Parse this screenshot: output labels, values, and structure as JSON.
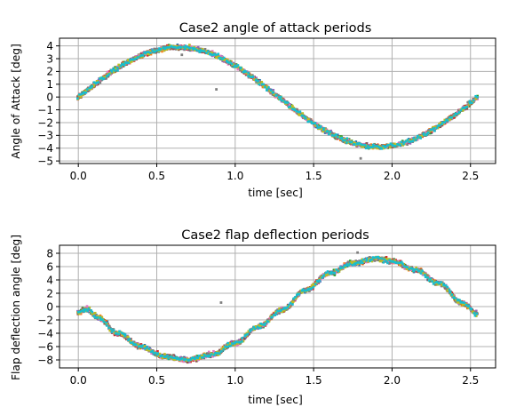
{
  "chart_data": [
    {
      "type": "scatter",
      "title": "Case2 angle of attack periods",
      "xlabel": "time [sec]",
      "ylabel": "Angle of Attack [deg]",
      "xlim": [
        -0.12,
        2.66
      ],
      "ylim": [
        -5.2,
        4.6
      ],
      "xticks": [
        0.0,
        0.5,
        1.0,
        1.5,
        2.0,
        2.5
      ],
      "xtick_labels": [
        "0.0",
        "0.5",
        "1.0",
        "1.5",
        "2.0",
        "2.5"
      ],
      "yticks": [
        4,
        3,
        2,
        1,
        0,
        -1,
        -2,
        -3,
        -4,
        -5
      ],
      "ytick_labels": [
        "4",
        "3",
        "2",
        "1",
        "0",
        "−1",
        "−2",
        "−3",
        "−4",
        "−5"
      ],
      "grid": true,
      "series_count": 10,
      "x_range_data": [
        0.0,
        2.54
      ],
      "trend": {
        "description": "noisy sinusoid, one full period",
        "amplitude": 3.9,
        "period": 2.55,
        "phase_zero_at": 0.0,
        "noise": 0.3
      },
      "outliers": [
        {
          "x": 0.88,
          "y": 0.6
        },
        {
          "x": 0.66,
          "y": 3.3
        },
        {
          "x": 1.8,
          "y": -4.8
        }
      ]
    },
    {
      "type": "scatter",
      "title": "Case2 flap deflection periods",
      "xlabel": "time [sec]",
      "ylabel": "Flap deflection angle [deg]",
      "xlim": [
        -0.12,
        2.66
      ],
      "ylim": [
        -9.2,
        9.2
      ],
      "xticks": [
        0.0,
        0.5,
        1.0,
        1.5,
        2.0,
        2.5
      ],
      "xtick_labels": [
        "0.0",
        "0.5",
        "1.0",
        "1.5",
        "2.0",
        "2.5"
      ],
      "yticks": [
        8,
        6,
        4,
        2,
        0,
        -2,
        -4,
        -6,
        -8
      ],
      "ytick_labels": [
        "8",
        "6",
        "4",
        "2",
        "0",
        "−2",
        "−4",
        "−6",
        "−8"
      ],
      "grid": true,
      "series_count": 10,
      "x_range_data": [
        0.0,
        2.54
      ],
      "trend": {
        "description": "noisy sinusoid lagging the angle of attack, with initial overshoot",
        "points": [
          [
            0.0,
            -1.0
          ],
          [
            0.05,
            -0.3
          ],
          [
            0.12,
            -1.5
          ],
          [
            0.25,
            -4.0
          ],
          [
            0.4,
            -6.0
          ],
          [
            0.55,
            -7.5
          ],
          [
            0.7,
            -8.0
          ],
          [
            0.85,
            -7.2
          ],
          [
            1.0,
            -5.5
          ],
          [
            1.15,
            -3.0
          ],
          [
            1.3,
            -0.5
          ],
          [
            1.45,
            2.5
          ],
          [
            1.6,
            5.0
          ],
          [
            1.75,
            6.5
          ],
          [
            1.9,
            7.2
          ],
          [
            2.0,
            6.8
          ],
          [
            2.15,
            5.5
          ],
          [
            2.3,
            3.5
          ],
          [
            2.45,
            0.5
          ],
          [
            2.54,
            -1.0
          ]
        ],
        "noise": 0.6
      },
      "outliers": [
        {
          "x": 0.91,
          "y": 0.6
        },
        {
          "x": 1.78,
          "y": 8.1
        }
      ]
    }
  ],
  "colors": {
    "series": [
      "#1f77b4",
      "#ff7f0e",
      "#2ca02c",
      "#d62728",
      "#9467bd",
      "#8c564b",
      "#e377c2",
      "#7f7f7f",
      "#bcbd22",
      "#17becf"
    ],
    "grid": "#b0b0b0",
    "axes": "#000000",
    "background": "#ffffff"
  }
}
